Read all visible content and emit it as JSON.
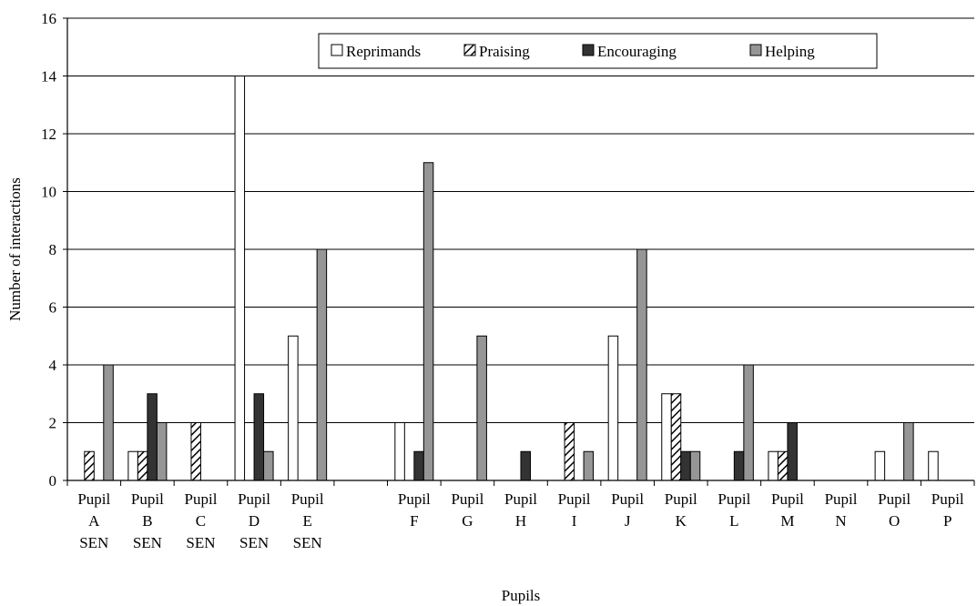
{
  "chart_data": {
    "type": "bar",
    "title": "",
    "xlabel": "Pupils",
    "ylabel": "Number of interactions",
    "ylim": [
      0,
      16
    ],
    "ytick_step": 2,
    "grid": "horizontal",
    "legend_position": "top-right",
    "categories": [
      [
        "Pupil",
        "A",
        "SEN"
      ],
      [
        "Pupil",
        "B",
        "SEN"
      ],
      [
        "Pupil",
        "C",
        "SEN"
      ],
      [
        "Pupil",
        "D",
        "SEN"
      ],
      [
        "Pupil",
        "E",
        "SEN"
      ],
      [
        "",
        "",
        ""
      ],
      [
        "Pupil",
        "F"
      ],
      [
        "Pupil",
        "G"
      ],
      [
        "Pupil",
        "H"
      ],
      [
        "Pupil",
        "I"
      ],
      [
        "Pupil",
        "J"
      ],
      [
        "Pupil",
        "K"
      ],
      [
        "Pupil",
        "L"
      ],
      [
        "Pupil",
        "M"
      ],
      [
        "Pupil",
        "N"
      ],
      [
        "Pupil",
        "O"
      ],
      [
        "Pupil",
        "P"
      ]
    ],
    "series": [
      {
        "name": "Reprimands",
        "pattern": "white",
        "values": [
          0,
          1,
          0,
          14,
          5,
          null,
          2,
          0,
          0,
          0,
          5,
          3,
          0,
          1,
          0,
          1,
          1
        ]
      },
      {
        "name": "Praising",
        "pattern": "hatch",
        "values": [
          1,
          1,
          2,
          0,
          0,
          null,
          0,
          0,
          0,
          2,
          0,
          3,
          0,
          1,
          0,
          0,
          0
        ]
      },
      {
        "name": "Encouraging",
        "pattern": "dark",
        "values": [
          0,
          3,
          0,
          3,
          0,
          null,
          1,
          0,
          1,
          0,
          0,
          1,
          1,
          2,
          0,
          0,
          0
        ]
      },
      {
        "name": "Helping",
        "pattern": "grey",
        "values": [
          4,
          2,
          0,
          1,
          8,
          null,
          11,
          5,
          0,
          1,
          8,
          1,
          4,
          0,
          0,
          2,
          0
        ]
      }
    ],
    "colors": {
      "white": "#ffffff",
      "dark": "#333333",
      "grey": "#969696",
      "hatch_stroke": "#000000",
      "bar_border": "#000000",
      "grid": "#000000"
    }
  }
}
